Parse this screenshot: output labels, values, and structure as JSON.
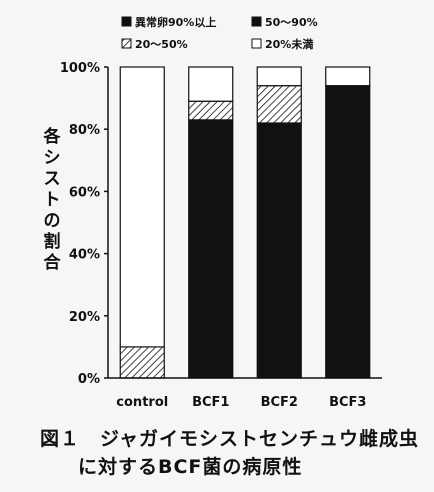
{
  "chart_data": {
    "type": "bar",
    "stacked": true,
    "categories": [
      "control",
      "BCF1",
      "BCF2",
      "BCF3"
    ],
    "series": [
      {
        "name": "異常卵90%以上",
        "values": [
          0,
          0,
          0,
          0
        ],
        "fill": "solid-black"
      },
      {
        "name": "50～90%",
        "values": [
          0,
          83,
          82,
          94
        ],
        "fill": "solid-black"
      },
      {
        "name": "20～50%",
        "values": [
          10,
          6,
          12,
          0
        ],
        "fill": "diagonal-hatch"
      },
      {
        "name": "20%未満",
        "values": [
          90,
          11,
          6,
          6
        ],
        "fill": "white"
      }
    ],
    "ylabel": "各シストの割合",
    "ylim": [
      0,
      100
    ],
    "yticks": [
      "0%",
      "20%",
      "40%",
      "60%",
      "80%",
      "100%"
    ],
    "legend_position": "top",
    "grid": false
  },
  "caption": {
    "line1": "図１　ジャガイモシストセンチュウ雌成虫",
    "line2": "に対するBCF菌の病原性"
  },
  "colors": {
    "background": "#f6f6f4",
    "ink": "#111111"
  }
}
